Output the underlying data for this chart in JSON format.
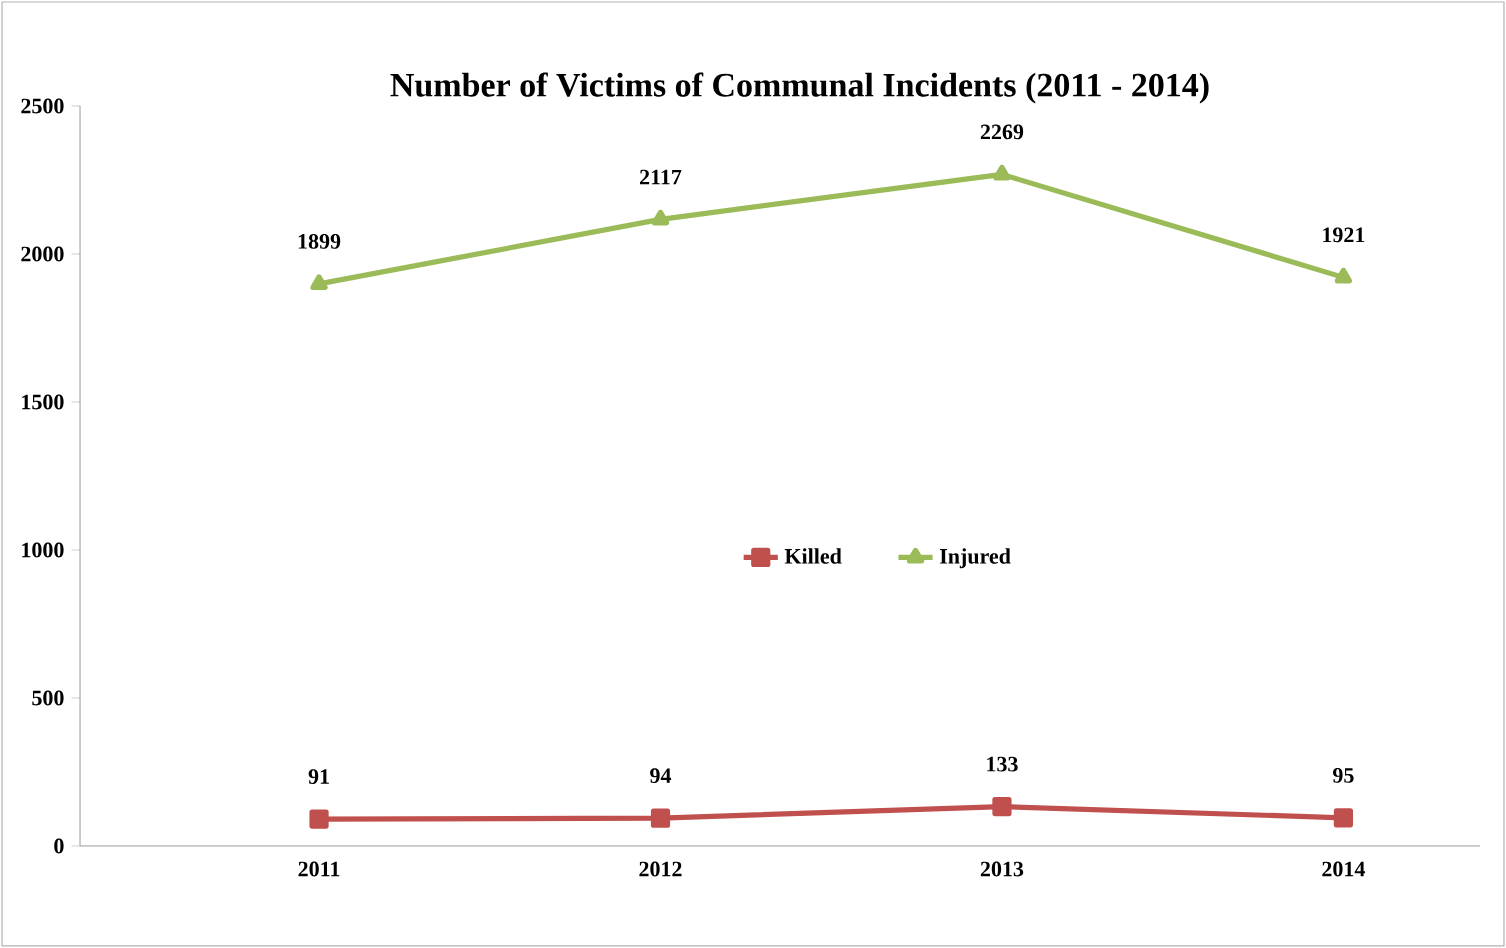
{
  "chart_data": {
    "type": "line",
    "title": "Number of Victims of Communal Incidents  (2011 - 2014)",
    "categories": [
      "2011",
      "2012",
      "2013",
      "2014"
    ],
    "series": [
      {
        "name": "Killed",
        "color": "#c0504d",
        "values": [
          91,
          94,
          133,
          95
        ],
        "marker": "square"
      },
      {
        "name": "Injured",
        "color": "#9bbb59",
        "values": [
          1899,
          2117,
          2269,
          1921
        ],
        "marker": "triangle"
      }
    ],
    "ylim": [
      0,
      2500
    ],
    "yticks": [
      0,
      500,
      1000,
      1500,
      2000,
      2500
    ],
    "grid": false,
    "legend": "center",
    "data_labels": true
  }
}
